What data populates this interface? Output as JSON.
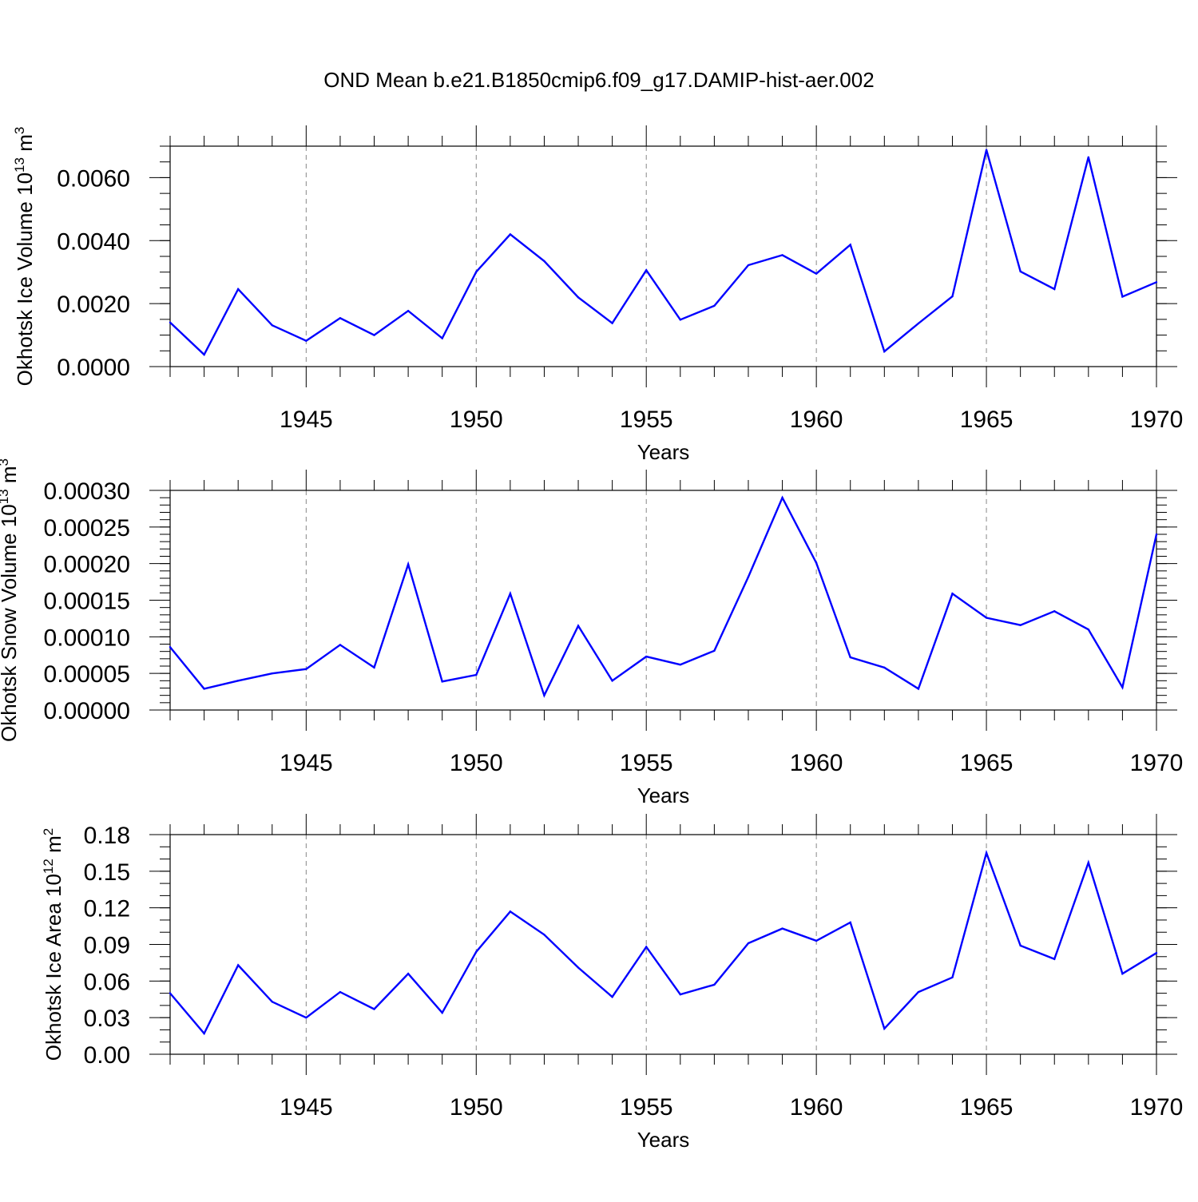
{
  "title": "OND Mean b.e21.B1850cmip6.f09_g17.DAMIP-hist-aer.002",
  "line_color": "#0000ff",
  "chart_data": [
    {
      "type": "line",
      "name": "ice-volume",
      "ylabel": "Okhotsk Ice Volume 10",
      "ylabel_sup": "13",
      "ylabel_unit": "m",
      "ylabel_unit_sup": "3",
      "xlabel": "Years",
      "xlim": [
        1941,
        1970
      ],
      "ylim": [
        0,
        0.007
      ],
      "yticks": [
        0,
        0.002,
        0.004,
        0.006
      ],
      "ytick_labels": [
        "0.0000",
        "0.0020",
        "0.0040",
        "0.0060"
      ],
      "yminor_step": 0.0005,
      "xticks": [
        1945,
        1950,
        1955,
        1960,
        1965,
        1970
      ],
      "xtick_labels": [
        "1945",
        "1950",
        "1955",
        "1960",
        "1965",
        "1970"
      ],
      "x": [
        1941,
        1942,
        1943,
        1944,
        1945,
        1946,
        1947,
        1948,
        1949,
        1950,
        1951,
        1952,
        1953,
        1954,
        1955,
        1956,
        1957,
        1958,
        1959,
        1960,
        1961,
        1962,
        1963,
        1964,
        1965,
        1966,
        1967,
        1968,
        1969,
        1970
      ],
      "values": [
        0.0014,
        0.00038,
        0.00246,
        0.00131,
        0.00082,
        0.00154,
        0.001,
        0.00177,
        0.0009,
        0.00301,
        0.0042,
        0.00335,
        0.0022,
        0.00138,
        0.00306,
        0.00149,
        0.00193,
        0.00322,
        0.00354,
        0.00295,
        0.00387,
        0.00048,
        0.00137,
        0.00223,
        0.00688,
        0.00302,
        0.00246,
        0.00665,
        0.00222,
        0.00268
      ]
    },
    {
      "type": "line",
      "name": "snow-volume",
      "ylabel": "Okhotsk Snow Volume 10",
      "ylabel_sup": "13",
      "ylabel_unit": "m",
      "ylabel_unit_sup": "3",
      "xlabel": "Years",
      "xlim": [
        1941,
        1970
      ],
      "ylim": [
        0,
        0.0003
      ],
      "yticks": [
        0,
        5e-05,
        0.0001,
        0.00015,
        0.0002,
        0.00025,
        0.0003
      ],
      "ytick_labels": [
        "0.00000",
        "0.00005",
        "0.00010",
        "0.00015",
        "0.00020",
        "0.00025",
        "0.00030"
      ],
      "yminor_step": 1e-05,
      "xticks": [
        1945,
        1950,
        1955,
        1960,
        1965,
        1970
      ],
      "xtick_labels": [
        "1945",
        "1950",
        "1955",
        "1960",
        "1965",
        "1970"
      ],
      "x": [
        1941,
        1942,
        1943,
        1944,
        1945,
        1946,
        1947,
        1948,
        1949,
        1950,
        1951,
        1952,
        1953,
        1954,
        1955,
        1956,
        1957,
        1958,
        1959,
        1960,
        1961,
        1962,
        1963,
        1964,
        1965,
        1966,
        1967,
        1968,
        1969,
        1970
      ],
      "values": [
        8.6e-05,
        2.9e-05,
        4e-05,
        5e-05,
        5.6e-05,
        8.9e-05,
        5.8e-05,
        0.000199,
        3.9e-05,
        4.8e-05,
        0.000159,
        2e-05,
        0.000115,
        4e-05,
        7.3e-05,
        6.2e-05,
        8.1e-05,
        0.000182,
        0.00029,
        0.000201,
        7.2e-05,
        5.8e-05,
        2.9e-05,
        0.000159,
        0.000126,
        0.000116,
        0.000135,
        0.00011,
        3.1e-05,
        0.00024
      ]
    },
    {
      "type": "line",
      "name": "ice-area",
      "ylabel": "Okhotsk Ice Area 10",
      "ylabel_sup": "12",
      "ylabel_unit": "m",
      "ylabel_unit_sup": "2",
      "xlabel": "Years",
      "xlim": [
        1941,
        1970
      ],
      "ylim": [
        0,
        0.18
      ],
      "yticks": [
        0,
        0.03,
        0.06,
        0.09,
        0.12,
        0.15,
        0.18
      ],
      "ytick_labels": [
        "0.00",
        "0.03",
        "0.06",
        "0.09",
        "0.12",
        "0.15",
        "0.18"
      ],
      "yminor_step": 0.01,
      "xticks": [
        1945,
        1950,
        1955,
        1960,
        1965,
        1970
      ],
      "xtick_labels": [
        "1945",
        "1950",
        "1955",
        "1960",
        "1965",
        "1970"
      ],
      "x": [
        1941,
        1942,
        1943,
        1944,
        1945,
        1946,
        1947,
        1948,
        1949,
        1950,
        1951,
        1952,
        1953,
        1954,
        1955,
        1956,
        1957,
        1958,
        1959,
        1960,
        1961,
        1962,
        1963,
        1964,
        1965,
        1966,
        1967,
        1968,
        1969,
        1970
      ],
      "values": [
        0.05,
        0.017,
        0.073,
        0.043,
        0.03,
        0.051,
        0.037,
        0.066,
        0.034,
        0.084,
        0.117,
        0.098,
        0.071,
        0.047,
        0.088,
        0.049,
        0.057,
        0.091,
        0.103,
        0.093,
        0.108,
        0.021,
        0.051,
        0.063,
        0.165,
        0.089,
        0.078,
        0.157,
        0.066,
        0.083
      ]
    }
  ]
}
